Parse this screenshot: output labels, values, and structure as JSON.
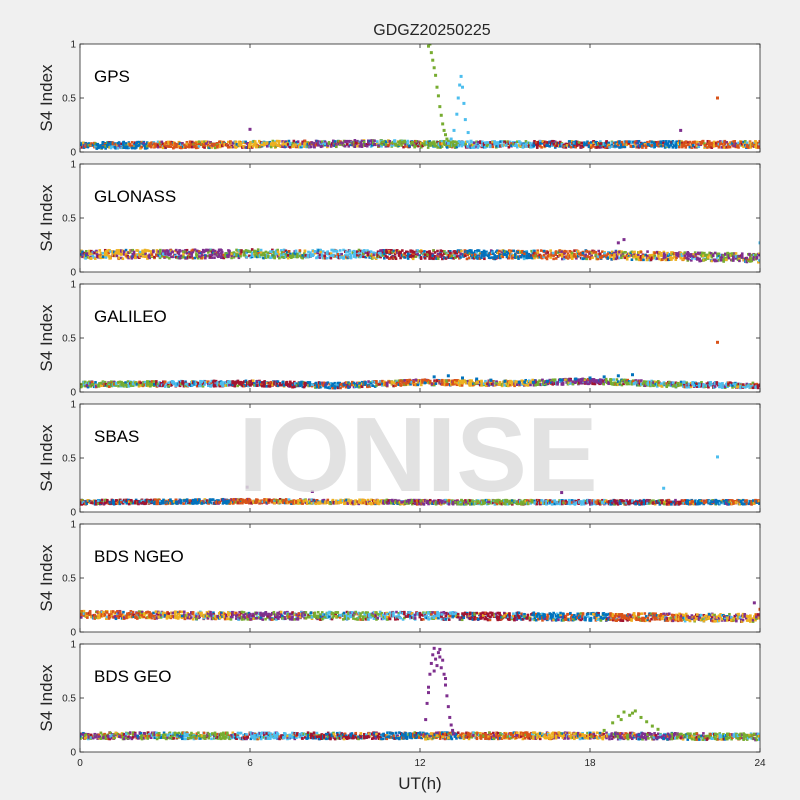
{
  "watermark": "IONISE",
  "chart_data": {
    "type": "scatter",
    "title": "GDGZ20250225",
    "xlabel": "UT(h)",
    "ylabel": "S4 Index",
    "xlim": [
      0,
      24
    ],
    "xticks": [
      0,
      6,
      12,
      18,
      24
    ],
    "ylim": [
      0,
      1
    ],
    "yticks": [
      0,
      0.5,
      1
    ],
    "grid": false,
    "colors": [
      "#0072BD",
      "#D95319",
      "#EDB120",
      "#7E2F8E",
      "#77AC30",
      "#4DBEEE",
      "#A2142F"
    ],
    "panels": [
      {
        "label": "GPS",
        "baseline": [
          {
            "x": 0,
            "y": 0.06
          },
          {
            "x": 6,
            "y": 0.07
          },
          {
            "x": 10.5,
            "y": 0.08
          },
          {
            "x": 12,
            "y": 0.07
          },
          {
            "x": 18,
            "y": 0.07
          },
          {
            "x": 24,
            "y": 0.07
          }
        ],
        "spread": 0.03,
        "series": [
          {
            "color": "#77AC30",
            "x": [
              12.3,
              12.35,
              12.4,
              12.45,
              12.5,
              12.55,
              12.6,
              12.65,
              12.7,
              12.75,
              12.8,
              12.85,
              12.9,
              12.95,
              13.0
            ],
            "y": [
              0.98,
              1.0,
              0.92,
              0.85,
              0.78,
              0.71,
              0.6,
              0.52,
              0.42,
              0.34,
              0.26,
              0.2,
              0.16,
              0.12,
              0.1
            ]
          },
          {
            "color": "#4DBEEE",
            "x": [
              13.0,
              13.1,
              13.2,
              13.3,
              13.35,
              13.4,
              13.45,
              13.5,
              13.55,
              13.6,
              13.7,
              13.8
            ],
            "y": [
              0.08,
              0.12,
              0.2,
              0.35,
              0.5,
              0.62,
              0.7,
              0.6,
              0.45,
              0.3,
              0.18,
              0.1
            ]
          },
          {
            "color": "#D95319",
            "x": [
              22.5
            ],
            "y": [
              0.5
            ]
          },
          {
            "color": "#7E2F8E",
            "x": [
              6.0,
              21.2
            ],
            "y": [
              0.21,
              0.2
            ]
          }
        ]
      },
      {
        "label": "GLONASS",
        "baseline": [
          {
            "x": 0,
            "y": 0.16
          },
          {
            "x": 6,
            "y": 0.17
          },
          {
            "x": 12,
            "y": 0.16
          },
          {
            "x": 18,
            "y": 0.16
          },
          {
            "x": 24,
            "y": 0.13
          }
        ],
        "spread": 0.04,
        "series": [
          {
            "color": "#7E2F8E",
            "x": [
              19.0,
              19.2
            ],
            "y": [
              0.27,
              0.3
            ]
          },
          {
            "color": "#4DBEEE",
            "x": [
              24.0
            ],
            "y": [
              0.27
            ]
          }
        ]
      },
      {
        "label": "GALILEO",
        "baseline": [
          {
            "x": 0,
            "y": 0.07
          },
          {
            "x": 6,
            "y": 0.08
          },
          {
            "x": 9,
            "y": 0.06
          },
          {
            "x": 12,
            "y": 0.09
          },
          {
            "x": 15,
            "y": 0.08
          },
          {
            "x": 18,
            "y": 0.1
          },
          {
            "x": 21,
            "y": 0.07
          },
          {
            "x": 24,
            "y": 0.06
          }
        ],
        "spread": 0.025,
        "series": [
          {
            "color": "#0072BD",
            "x": [
              12.5,
              13.0,
              13.5,
              14.0,
              14.5,
              15.0,
              15.5,
              16.0,
              16.5,
              17.0,
              17.5,
              18.0,
              18.5,
              19.0,
              19.5
            ],
            "y": [
              0.14,
              0.15,
              0.13,
              0.12,
              0.11,
              0.1,
              0.09,
              0.09,
              0.1,
              0.11,
              0.12,
              0.13,
              0.14,
              0.15,
              0.16
            ]
          },
          {
            "color": "#D95319",
            "x": [
              22.5
            ],
            "y": [
              0.46
            ]
          }
        ]
      },
      {
        "label": "SBAS",
        "baseline": [
          {
            "x": 0,
            "y": 0.09
          },
          {
            "x": 6,
            "y": 0.1
          },
          {
            "x": 12,
            "y": 0.09
          },
          {
            "x": 18,
            "y": 0.09
          },
          {
            "x": 24,
            "y": 0.09
          }
        ],
        "spread": 0.02,
        "series": [
          {
            "color": "#4DBEEE",
            "x": [
              22.5,
              20.6
            ],
            "y": [
              0.51,
              0.22
            ]
          },
          {
            "color": "#7E2F8E",
            "x": [
              5.9,
              8.2,
              17.0
            ],
            "y": [
              0.23,
              0.19,
              0.18
            ]
          }
        ]
      },
      {
        "label": "BDS NGEO",
        "baseline": [
          {
            "x": 0,
            "y": 0.16
          },
          {
            "x": 6,
            "y": 0.15
          },
          {
            "x": 12,
            "y": 0.15
          },
          {
            "x": 18,
            "y": 0.14
          },
          {
            "x": 24,
            "y": 0.13
          }
        ],
        "spread": 0.035,
        "series": [
          {
            "color": "#7E2F8E",
            "x": [
              23.8
            ],
            "y": [
              0.27
            ]
          },
          {
            "color": "#D95319",
            "x": [
              24.0
            ],
            "y": [
              0.21
            ]
          }
        ]
      },
      {
        "label": "BDS GEO",
        "baseline": [
          {
            "x": 0,
            "y": 0.15
          },
          {
            "x": 6,
            "y": 0.15
          },
          {
            "x": 12,
            "y": 0.15
          },
          {
            "x": 18,
            "y": 0.15
          },
          {
            "x": 24,
            "y": 0.14
          }
        ],
        "spread": 0.03,
        "series": [
          {
            "color": "#7E2F8E",
            "x": [
              12.2,
              12.25,
              12.3,
              12.35,
              12.4,
              12.45,
              12.5,
              12.55,
              12.6,
              12.65,
              12.7,
              12.75,
              12.8,
              12.85,
              12.9,
              12.95,
              13.0,
              13.05,
              13.1,
              13.15,
              13.2,
              12.3,
              12.5,
              12.7,
              12.9
            ],
            "y": [
              0.3,
              0.45,
              0.6,
              0.72,
              0.82,
              0.9,
              0.96,
              0.86,
              0.8,
              0.92,
              0.88,
              0.78,
              0.85,
              0.72,
              0.62,
              0.52,
              0.42,
              0.32,
              0.25,
              0.2,
              0.17,
              0.55,
              0.75,
              0.95,
              0.68
            ]
          },
          {
            "color": "#77AC30",
            "x": [
              18.5,
              18.8,
              19.0,
              19.2,
              19.4,
              19.6,
              19.8,
              20.0,
              20.2,
              20.4,
              19.1,
              19.5
            ],
            "y": [
              0.2,
              0.27,
              0.33,
              0.37,
              0.34,
              0.38,
              0.32,
              0.28,
              0.24,
              0.21,
              0.3,
              0.36
            ]
          },
          {
            "color": "#EDB120",
            "x": [
              12.2,
              12.6,
              13.0,
              12.4,
              12.8
            ],
            "y": [
              0.12,
              0.15,
              0.13,
              0.17,
              0.14
            ]
          }
        ]
      }
    ]
  }
}
